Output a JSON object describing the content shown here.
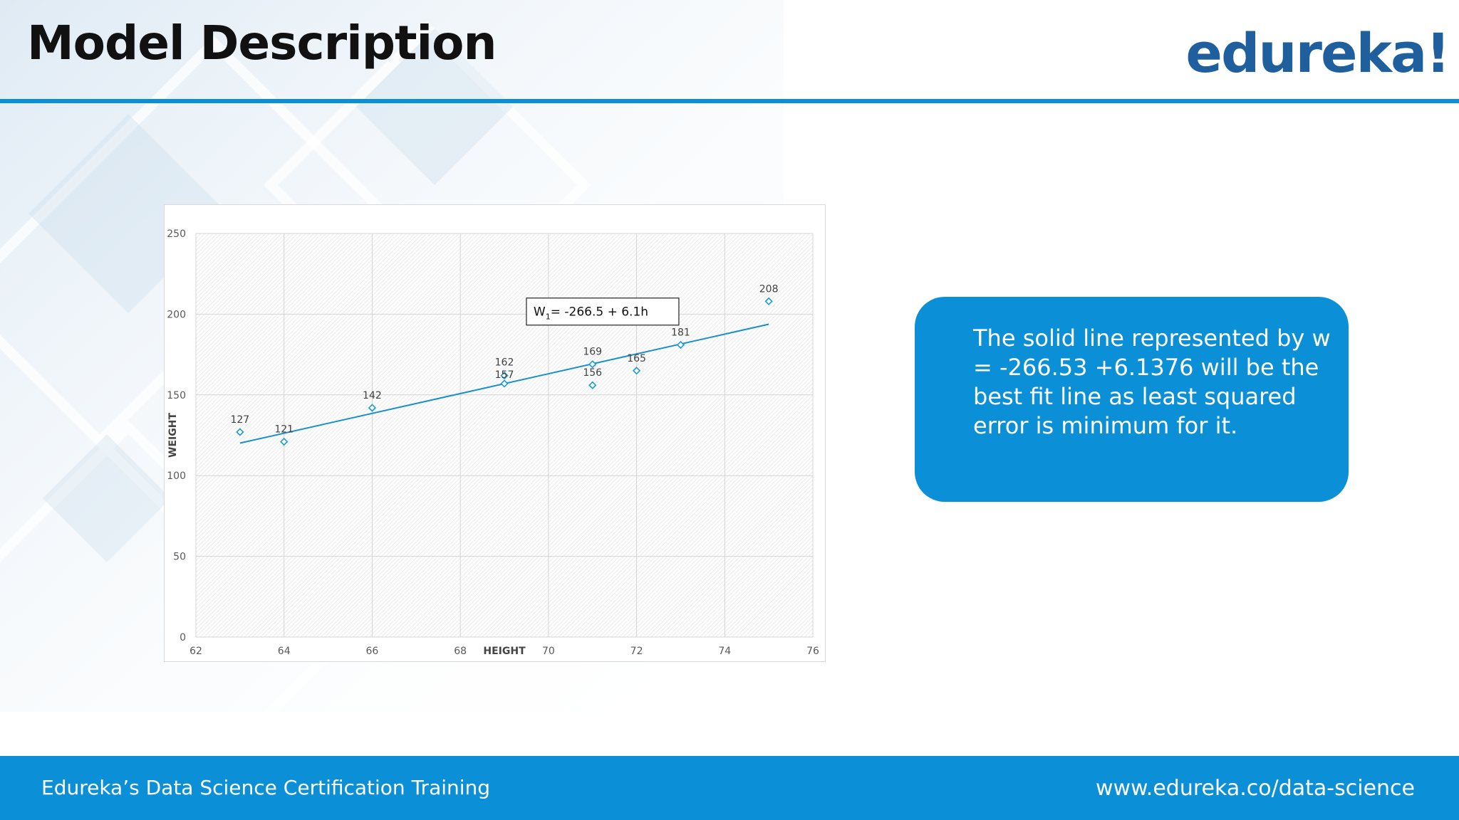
{
  "slide": {
    "title": "Model Description",
    "logo": "edureka!",
    "callout_text": "The solid line represented by w = -266.53 +6.1376 will be the best fit line as least squared error is minimum for it.",
    "footer_left": "Edureka’s Data Science Certification Training",
    "footer_right": "www.edureka.co/data-science"
  },
  "colors": {
    "accent": "#0b8fd6",
    "logo": "#1f5f9e",
    "marker": "#1a9ad6",
    "trendline": "#1a8fc9"
  },
  "chart_data": {
    "type": "scatter",
    "title": "",
    "xlabel": "HEIGHT",
    "ylabel": "WEIGHT",
    "xlim": [
      62,
      76
    ],
    "ylim": [
      0,
      250
    ],
    "xticks": [
      62,
      64,
      66,
      68,
      70,
      72,
      74,
      76
    ],
    "yticks": [
      0,
      50,
      100,
      150,
      200,
      250
    ],
    "grid": true,
    "points": [
      {
        "x": 63,
        "y": 127,
        "label": "127"
      },
      {
        "x": 64,
        "y": 121,
        "label": "121"
      },
      {
        "x": 66,
        "y": 142,
        "label": "142"
      },
      {
        "x": 69,
        "y": 162,
        "label": "162"
      },
      {
        "x": 69,
        "y": 157,
        "label": "157"
      },
      {
        "x": 71,
        "y": 169,
        "label": "169"
      },
      {
        "x": 71,
        "y": 156,
        "label": "156"
      },
      {
        "x": 72,
        "y": 165,
        "label": "165"
      },
      {
        "x": 73,
        "y": 181,
        "label": "181"
      },
      {
        "x": 75,
        "y": 208,
        "label": "208"
      }
    ],
    "trendline": {
      "intercept": -266.53,
      "slope": 6.1376,
      "x_start": 63,
      "x_end": 75
    },
    "equation": {
      "prefix": "W",
      "subscript": "1",
      "text": "= -266.5  + 6.1h"
    }
  }
}
